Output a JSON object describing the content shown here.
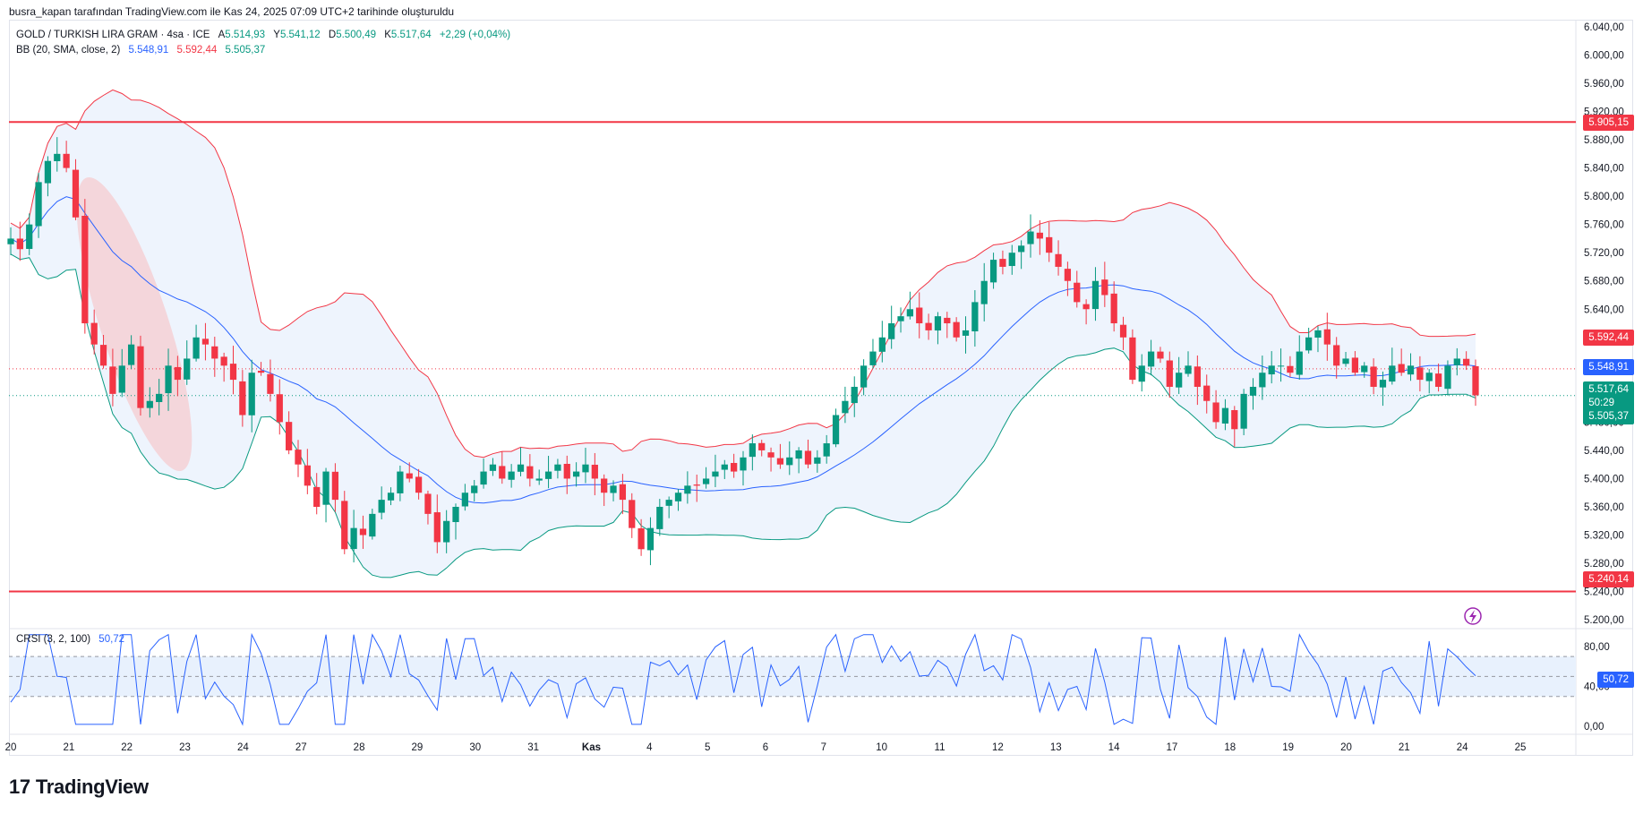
{
  "header": {
    "attribution": "busra_kapan tarafından TradingView.com ile Kas 24, 2025 07:09 UTC+2 tarihinde oluşturuldu"
  },
  "legend": {
    "symbol": "GOLD / TURKISH LIRA GRAM · 4sa · ICE",
    "ohlc_label_a": "A",
    "ohlc_a": "5.514,93",
    "ohlc_label_y": "Y",
    "ohlc_y": "5.541,12",
    "ohlc_label_d": "D",
    "ohlc_d": "5.500,49",
    "ohlc_label_k": "K",
    "ohlc_k": "5.517,64",
    "change": "+2,29 (+0,04%)",
    "bb_label": "BB (20, SMA, close, 2)",
    "bb_basis": "5.548,91",
    "bb_upper": "5.592,44",
    "bb_lower": "5.505,37",
    "crsi_label": "CRSI (3, 2, 100)",
    "crsi_value": "50,72"
  },
  "price_tags": {
    "resistance": "5.905,15",
    "bb_upper": "5.592,44",
    "bb_basis": "5.548,91",
    "last": "5.517,64",
    "countdown": "50:29",
    "bb_lower": "5.505,37",
    "support": "5.240,14",
    "crsi": "50,72"
  },
  "logo": {
    "text": "TradingView"
  },
  "colors": {
    "up": "#089981",
    "down": "#f23645",
    "bb_basis": "#2962ff",
    "bb_upper": "#f23645",
    "bb_lower": "#089981",
    "bb_fill": "#eef4fd",
    "level_line": "#f23645",
    "crsi_line": "#2962ff"
  },
  "chart_data": [
    {
      "type": "candlestick",
      "y_ticks": [
        "5.200,00",
        "5.240,00",
        "5.280,00",
        "5.320,00",
        "5.360,00",
        "5.400,00",
        "5.440,00",
        "5.480,00",
        "5.520,00",
        "5.560,00",
        "5.600,00",
        "5.640,00",
        "5.680,00",
        "5.720,00",
        "5.760,00",
        "5.800,00",
        "5.840,00",
        "5.880,00",
        "5.920,00",
        "5.960,00",
        "6.000,00",
        "6.040,00"
      ],
      "ylim": [
        5190,
        6045
      ],
      "x_ticks": [
        "20",
        "21",
        "22",
        "23",
        "24",
        "27",
        "28",
        "29",
        "30",
        "31",
        "Kas",
        "4",
        "5",
        "6",
        "7",
        "10",
        "11",
        "12",
        "13",
        "14",
        "17",
        "18",
        "19",
        "20",
        "21",
        "24",
        "25"
      ],
      "horizontal_levels": [
        5905.15,
        5240.14
      ],
      "last_price": 5517.64,
      "bb_upper_last": 5592.44,
      "bb_basis_last": 5548.91,
      "bb_lower_last": 5505.37,
      "close": [
        5740,
        5725,
        5760,
        5820,
        5850,
        5860,
        5840,
        5770,
        5620,
        5590,
        5560,
        5520,
        5560,
        5590,
        5500,
        5510,
        5520,
        5560,
        5540,
        5570,
        5600,
        5590,
        5570,
        5560,
        5540,
        5490,
        5550,
        5550,
        5520,
        5480,
        5440,
        5420,
        5390,
        5360,
        5410,
        5370,
        5300,
        5330,
        5320,
        5350,
        5370,
        5380,
        5410,
        5400,
        5380,
        5350,
        5310,
        5340,
        5360,
        5380,
        5390,
        5410,
        5420,
        5400,
        5410,
        5420,
        5400,
        5400,
        5410,
        5420,
        5400,
        5410,
        5420,
        5400,
        5380,
        5390,
        5370,
        5330,
        5300,
        5330,
        5360,
        5370,
        5380,
        5390,
        5390,
        5400,
        5410,
        5420,
        5410,
        5430,
        5450,
        5440,
        5430,
        5420,
        5430,
        5440,
        5420,
        5430,
        5450,
        5490,
        5510,
        5530,
        5560,
        5580,
        5600,
        5620,
        5630,
        5640,
        5620,
        5610,
        5630,
        5620,
        5600,
        5610,
        5650,
        5680,
        5710,
        5700,
        5720,
        5730,
        5750,
        5740,
        5720,
        5700,
        5680,
        5650,
        5640,
        5680,
        5660,
        5620,
        5600,
        5540,
        5560,
        5580,
        5570,
        5530,
        5550,
        5560,
        5530,
        5510,
        5480,
        5500,
        5470,
        5520,
        5530,
        5550,
        5560,
        5560,
        5550,
        5580,
        5600,
        5610,
        5590,
        5560,
        5570,
        5550,
        5560,
        5530,
        5540,
        5560,
        5550,
        5560,
        5540,
        5550,
        5530,
        5560,
        5570,
        5560,
        5518
      ]
    },
    {
      "type": "line",
      "name": "CRSI (3, 2, 100)",
      "y_ticks": [
        "0,00",
        "40,00",
        "80,00"
      ],
      "ylim": [
        -8,
        98
      ],
      "levels": [
        70,
        50,
        30
      ],
      "last": 50.72
    }
  ]
}
